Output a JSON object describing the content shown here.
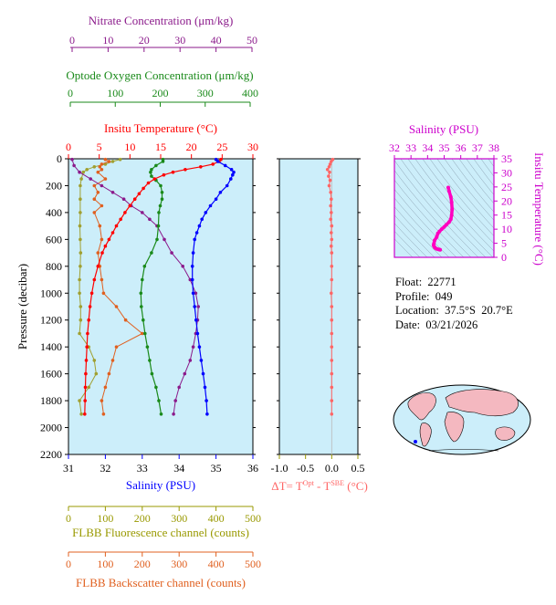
{
  "colors": {
    "nitrate": "#8B1A8B",
    "oxygen": "#1A8A1A",
    "temperature": "#FF0000",
    "salinity": "#0000FF",
    "fluorescence": "#A0A030",
    "backscatter": "#E06020",
    "delta_t": "#FF6666",
    "ts_line": "#FF00C0",
    "ts_axis": "#CC00CC",
    "plot_bg": "#CCEEFA",
    "axis_olive": "#999900"
  },
  "info": {
    "float_label": "Float:",
    "float_value": "22771",
    "profile_label": "Profile:",
    "profile_value": "049",
    "location_label": "Location:",
    "location_value": "37.5°S  20.7°E",
    "date_label": "Date:",
    "date_value": "03/21/2026"
  },
  "chart_data": [
    {
      "type": "line",
      "panel": "main-profile",
      "ylabel": "Pressure (decibar)",
      "ylim": [
        2200,
        0
      ],
      "yticks": [
        "0",
        "200",
        "400",
        "600",
        "800",
        "1000",
        "1200",
        "1400",
        "1600",
        "1800",
        "2000",
        "2200"
      ],
      "axes": {
        "nitrate": {
          "label": "Nitrate Concentration (μm/kg)",
          "range": [
            0,
            50
          ],
          "ticks": [
            "0",
            "10",
            "20",
            "30",
            "40",
            "50"
          ]
        },
        "oxygen": {
          "label": "Optode Oxygen Concentration (μm/kg)",
          "range": [
            0,
            400
          ],
          "ticks": [
            "0",
            "100",
            "200",
            "300",
            "400"
          ]
        },
        "temperature": {
          "label": "Insitu Temperature (°C)",
          "range": [
            0,
            30
          ],
          "ticks": [
            "0",
            "5",
            "10",
            "15",
            "20",
            "25",
            "30"
          ]
        },
        "salinity": {
          "label": "Salinity (PSU)",
          "range": [
            31,
            36
          ],
          "ticks": [
            "31",
            "32",
            "33",
            "34",
            "35",
            "36"
          ]
        },
        "fluorescence": {
          "label": "FLBB Fluorescence channel (counts)",
          "range": [
            0,
            500
          ],
          "ticks": [
            "0",
            "100",
            "200",
            "300",
            "400",
            "500"
          ]
        },
        "backscatter": {
          "label": "FLBB Backscatter channel (counts)",
          "range": [
            0,
            500
          ],
          "ticks": [
            "0",
            "100",
            "200",
            "300",
            "400",
            "500"
          ]
        }
      },
      "series": {
        "temperature": {
          "pressure": [
            5,
            20,
            40,
            60,
            80,
            100,
            120,
            150,
            180,
            220,
            260,
            300,
            350,
            400,
            450,
            500,
            550,
            600,
            650,
            700,
            800,
            900,
            1000,
            1100,
            1200,
            1300,
            1400,
            1500,
            1600,
            1700,
            1800,
            1900
          ],
          "values": [
            24.8,
            24.5,
            23.5,
            21.5,
            19.0,
            17.0,
            15.5,
            14.0,
            13.0,
            12.2,
            11.5,
            10.8,
            10.0,
            9.2,
            8.5,
            7.8,
            7.2,
            6.6,
            6.0,
            5.5,
            4.8,
            4.2,
            3.8,
            3.5,
            3.3,
            3.1,
            3.0,
            2.9,
            2.8,
            2.75,
            2.7,
            2.65
          ]
        },
        "salinity": {
          "pressure": [
            5,
            20,
            50,
            80,
            100,
            120,
            150,
            200,
            250,
            300,
            350,
            400,
            450,
            500,
            550,
            600,
            700,
            800,
            900,
            1000,
            1100,
            1200,
            1300,
            1400,
            1500,
            1600,
            1700,
            1800,
            1900
          ],
          "values": [
            35.0,
            35.05,
            35.25,
            35.42,
            35.48,
            35.45,
            35.4,
            35.3,
            35.12,
            35.0,
            34.85,
            34.72,
            34.62,
            34.55,
            34.48,
            34.42,
            34.38,
            34.36,
            34.36,
            34.38,
            34.42,
            34.46,
            34.5,
            34.55,
            34.6,
            34.65,
            34.7,
            34.74,
            34.76
          ]
        },
        "oxygen": {
          "pressure": [
            5,
            20,
            50,
            80,
            100,
            130,
            160,
            200,
            250,
            300,
            350,
            400,
            500,
            600,
            700,
            800,
            900,
            1000,
            1100,
            1200,
            1300,
            1400,
            1500,
            1600,
            1700,
            1800,
            1900
          ],
          "values": [
            205,
            205,
            190,
            180,
            178,
            180,
            190,
            200,
            203,
            203,
            199,
            196,
            195,
            192,
            180,
            165,
            160,
            157,
            158,
            162,
            166,
            171,
            176,
            181,
            190,
            196,
            201
          ]
        },
        "nitrate": {
          "pressure": [
            5,
            50,
            100,
            150,
            200,
            250,
            300,
            350,
            400,
            450,
            500,
            600,
            700,
            800,
            900,
            1000,
            1100,
            1200,
            1300,
            1400,
            1500,
            1600,
            1700,
            1800,
            1900
          ],
          "values": [
            1,
            1.5,
            3,
            6,
            9,
            12,
            15,
            17,
            20,
            22,
            24,
            26,
            28,
            31,
            33,
            34.5,
            35.2,
            35,
            34.5,
            33.8,
            33,
            31.5,
            30,
            29,
            28.5
          ]
        },
        "fluorescence": {
          "pressure": [
            5,
            20,
            40,
            60,
            80,
            100,
            150,
            200,
            300,
            400,
            500,
            600,
            700,
            800,
            900,
            1000,
            1100,
            1200,
            1300,
            1400,
            1500,
            1600,
            1700,
            1800,
            1900
          ],
          "values": [
            140,
            120,
            100,
            70,
            50,
            40,
            35,
            32,
            32,
            32,
            31,
            32,
            33,
            32,
            30,
            30,
            33,
            33,
            30,
            55,
            70,
            75,
            55,
            30,
            35
          ]
        },
        "backscatter": {
          "pressure": [
            5,
            20,
            40,
            60,
            80,
            100,
            150,
            200,
            250,
            300,
            350,
            400,
            500,
            600,
            700,
            800,
            900,
            1000,
            1100,
            1200,
            1300,
            1400,
            1500,
            1600,
            1700,
            1800,
            1900
          ],
          "values": [
            100,
            110,
            90,
            85,
            90,
            80,
            100,
            70,
            80,
            70,
            90,
            70,
            85,
            90,
            80,
            85,
            90,
            95,
            130,
            155,
            200,
            130,
            120,
            110,
            100,
            90,
            95
          ]
        }
      }
    },
    {
      "type": "scatter",
      "panel": "delta-t",
      "xlabel": "ΔT= T",
      "xlabel_sup1": "Opt",
      "xlabel_mid": " - T",
      "xlabel_sup2": "SBE",
      "xlabel_unit": " (°C)",
      "xlim": [
        -1.0,
        0.5
      ],
      "xticks": [
        "-1.0",
        "-0.5",
        "0.0",
        "0.5"
      ],
      "ylim": [
        2200,
        0
      ],
      "pressure": [
        5,
        20,
        40,
        60,
        80,
        100,
        130,
        160,
        200,
        250,
        300,
        350,
        400,
        450,
        500,
        550,
        600,
        650,
        700,
        800,
        900,
        1000,
        1100,
        1200,
        1300,
        1400,
        1500,
        1600,
        1700,
        1800,
        1900
      ],
      "values": [
        0.02,
        -0.01,
        -0.03,
        -0.05,
        -0.08,
        -0.04,
        -0.06,
        -0.03,
        -0.05,
        -0.02,
        -0.01,
        -0.02,
        -0.01,
        -0.02,
        0.0,
        -0.01,
        0.0,
        -0.01,
        0.0,
        0.0,
        0.0,
        -0.01,
        0.0,
        0.0,
        0.0,
        0.0,
        0.0,
        0.0,
        0.0,
        0.0,
        0.0
      ]
    },
    {
      "type": "line",
      "panel": "ts-diagram",
      "xlabel": "Salinity (PSU)",
      "ylabel": "Insitu Temperature (°C)",
      "xlim": [
        32,
        38
      ],
      "ylim": [
        0,
        35
      ],
      "xticks": [
        "32",
        "33",
        "34",
        "35",
        "36",
        "37",
        "38"
      ],
      "yticks": [
        "0",
        "5",
        "10",
        "15",
        "20",
        "25",
        "30",
        "35"
      ],
      "salinity": [
        34.76,
        34.72,
        34.65,
        34.55,
        34.46,
        34.42,
        34.36,
        34.38,
        34.42,
        34.55,
        34.62,
        34.72,
        34.85,
        35.0,
        35.12,
        35.3,
        35.4,
        35.45,
        35.48,
        35.45,
        35.4,
        35.3,
        35.25
      ],
      "temperature": [
        2.65,
        2.75,
        2.85,
        3.0,
        3.3,
        3.6,
        4.2,
        4.8,
        6.0,
        7.2,
        8.5,
        9.2,
        10.0,
        10.8,
        11.5,
        12.5,
        13.5,
        15.0,
        17.0,
        19.5,
        21.5,
        23.5,
        24.8
      ]
    }
  ]
}
